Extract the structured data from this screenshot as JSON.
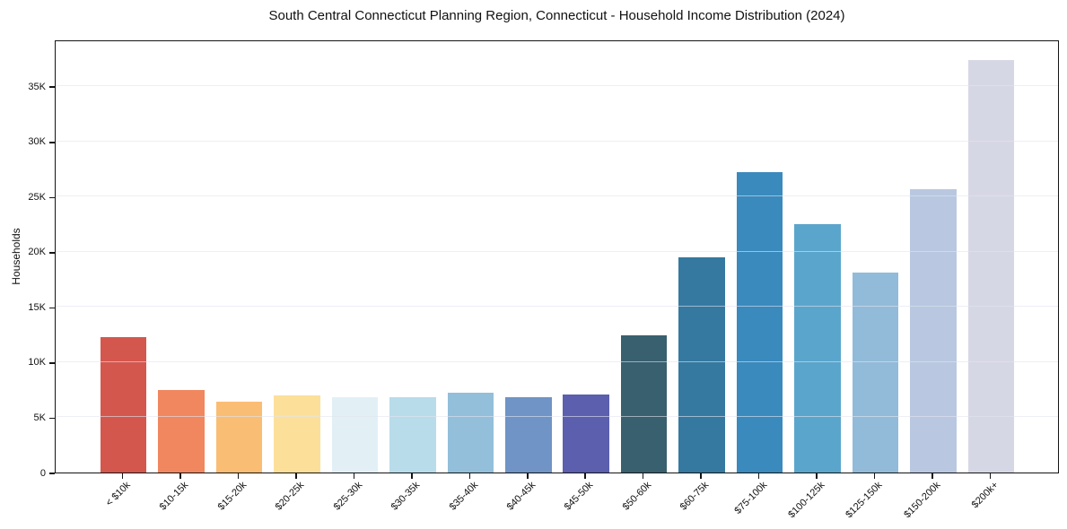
{
  "title": "South Central Connecticut Planning Region, Connecticut - Household Income Distribution (2024)",
  "chart_data": {
    "type": "bar",
    "title": "South Central Connecticut Planning Region, Connecticut - Household Income Distribution (2024)",
    "xlabel": "",
    "ylabel": "Households",
    "categories": [
      "< $10k",
      "$10-15k",
      "$15-20k",
      "$20-25k",
      "$25-30k",
      "$30-35k",
      "$35-40k",
      "$40-45k",
      "$45-50k",
      "$50-60k",
      "$60-75k",
      "$75-100k",
      "$100-125k",
      "$125-150k",
      "$150-200k",
      "$200k+"
    ],
    "values": [
      12300,
      7500,
      6400,
      7000,
      6800,
      6800,
      7200,
      6800,
      7100,
      12400,
      19500,
      27200,
      22500,
      18100,
      25700,
      37400
    ],
    "bar_colors": [
      "#d4574e",
      "#f1875f",
      "#fabd74",
      "#fce09a",
      "#e2f0f6",
      "#b8dcea",
      "#93bfda",
      "#6f94c5",
      "#5b5fae",
      "#38606f",
      "#3579a1",
      "#3a8abd",
      "#5aa5cb",
      "#92bbd9",
      "#b9c8e0",
      "#d6d7e4"
    ],
    "ylim": [
      0,
      39250
    ],
    "yticks": [
      {
        "value": 0,
        "label": "0"
      },
      {
        "value": 5000,
        "label": "5K"
      },
      {
        "value": 10000,
        "label": "10K"
      },
      {
        "value": 15000,
        "label": "15K"
      },
      {
        "value": 20000,
        "label": "20K"
      },
      {
        "value": 25000,
        "label": "25K"
      },
      {
        "value": 30000,
        "label": "30K"
      },
      {
        "value": 35000,
        "label": "35K"
      }
    ],
    "grid": "horizontal",
    "legend": "none",
    "background": "#ffffff",
    "axis_color": "#141414",
    "gridline_color": "#e1e4ee"
  }
}
